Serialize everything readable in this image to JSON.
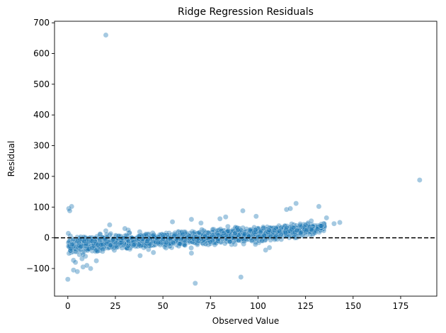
{
  "chart_data": {
    "type": "scatter",
    "title": "Ridge Regression Residuals",
    "xlabel": "Observed Value",
    "ylabel": "Residual",
    "xlim": [
      -7,
      194
    ],
    "ylim": [
      -190,
      705
    ],
    "xticks": [
      0,
      25,
      50,
      75,
      100,
      125,
      150,
      175
    ],
    "yticks": [
      -100,
      0,
      100,
      200,
      300,
      400,
      500,
      600,
      700
    ],
    "ytick_labels": [
      "−100",
      "0",
      "100",
      "200",
      "300",
      "400",
      "500",
      "600",
      "700"
    ],
    "grid": false,
    "legend": "none",
    "reference_line": {
      "y": 0,
      "style": "dashed",
      "color": "#000000"
    },
    "point_color": "#1f77b4",
    "point_alpha": 0.4,
    "trend_band": {
      "x": [
        0,
        25,
        50,
        75,
        100,
        125,
        135
      ],
      "center": [
        -25,
        -15,
        -8,
        2,
        12,
        25,
        35
      ],
      "spread": [
        32,
        28,
        24,
        22,
        22,
        18,
        12
      ]
    },
    "outliers": [
      {
        "x": 20,
        "y": 660
      },
      {
        "x": 185,
        "y": 188
      },
      {
        "x": 0,
        "y": -135
      },
      {
        "x": 67,
        "y": -148
      },
      {
        "x": 91,
        "y": -128
      },
      {
        "x": 0.5,
        "y": 95
      },
      {
        "x": 1,
        "y": 88
      },
      {
        "x": 2,
        "y": 102
      },
      {
        "x": 3,
        "y": -105
      },
      {
        "x": 5,
        "y": -110
      },
      {
        "x": 8,
        "y": -95
      },
      {
        "x": 10,
        "y": -90
      },
      {
        "x": 12,
        "y": -100
      },
      {
        "x": 4,
        "y": -80
      },
      {
        "x": 15,
        "y": -75
      },
      {
        "x": 92,
        "y": 88
      },
      {
        "x": 99,
        "y": 70
      },
      {
        "x": 115,
        "y": 92
      },
      {
        "x": 117,
        "y": 95
      },
      {
        "x": 120,
        "y": 112
      },
      {
        "x": 132,
        "y": 102
      },
      {
        "x": 143,
        "y": 50
      },
      {
        "x": 136,
        "y": 65
      },
      {
        "x": 83,
        "y": 68
      },
      {
        "x": 80,
        "y": 62
      },
      {
        "x": 65,
        "y": 60
      },
      {
        "x": 22,
        "y": 42
      },
      {
        "x": 30,
        "y": 30
      },
      {
        "x": 106,
        "y": -32
      },
      {
        "x": 104,
        "y": -40
      },
      {
        "x": 65,
        "y": -50
      },
      {
        "x": 38,
        "y": -58
      },
      {
        "x": 45,
        "y": -48
      },
      {
        "x": 128,
        "y": 55
      },
      {
        "x": 125,
        "y": 42
      },
      {
        "x": 140,
        "y": 46
      },
      {
        "x": 70,
        "y": 48
      },
      {
        "x": 55,
        "y": 52
      }
    ],
    "dense_points": 2200
  }
}
